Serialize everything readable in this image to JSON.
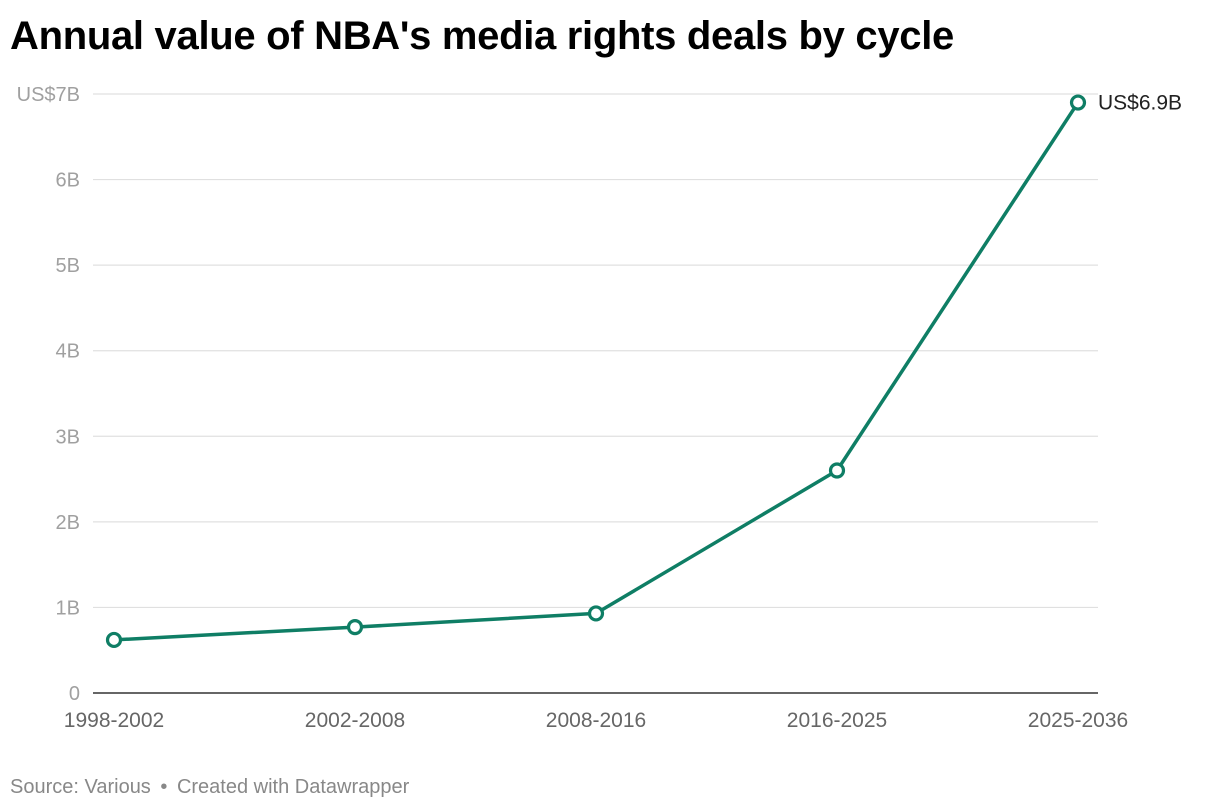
{
  "title": "Annual value of NBA's media rights deals by cycle",
  "footer": {
    "source": "Source: Various",
    "separator": "•",
    "credit": "Created with Datawrapper"
  },
  "colors": {
    "line": "#0f7e65",
    "grid": "#e0e0e0",
    "axis": "#333333",
    "tick_label": "#a0a0a0",
    "x_label": "#666666"
  },
  "chart_data": {
    "type": "line",
    "title": "Annual value of NBA's media rights deals by cycle",
    "xlabel": "",
    "ylabel": "",
    "categories": [
      "1998-2002",
      "2002-2008",
      "2008-2016",
      "2016-2025",
      "2025-2036"
    ],
    "series": [
      {
        "values": [
          0.62,
          0.77,
          0.93,
          2.6,
          6.9
        ]
      }
    ],
    "ylim": [
      0,
      7
    ],
    "y_ticks": [
      0,
      1,
      2,
      3,
      4,
      5,
      6,
      7
    ],
    "y_tick_labels": [
      "0",
      "1B",
      "2B",
      "3B",
      "4B",
      "5B",
      "6B",
      "US$7B"
    ],
    "annotations": [
      {
        "category": "2025-2036",
        "value": 6.9,
        "text": "US$6.9B"
      }
    ],
    "grid": true,
    "legend": "none"
  }
}
